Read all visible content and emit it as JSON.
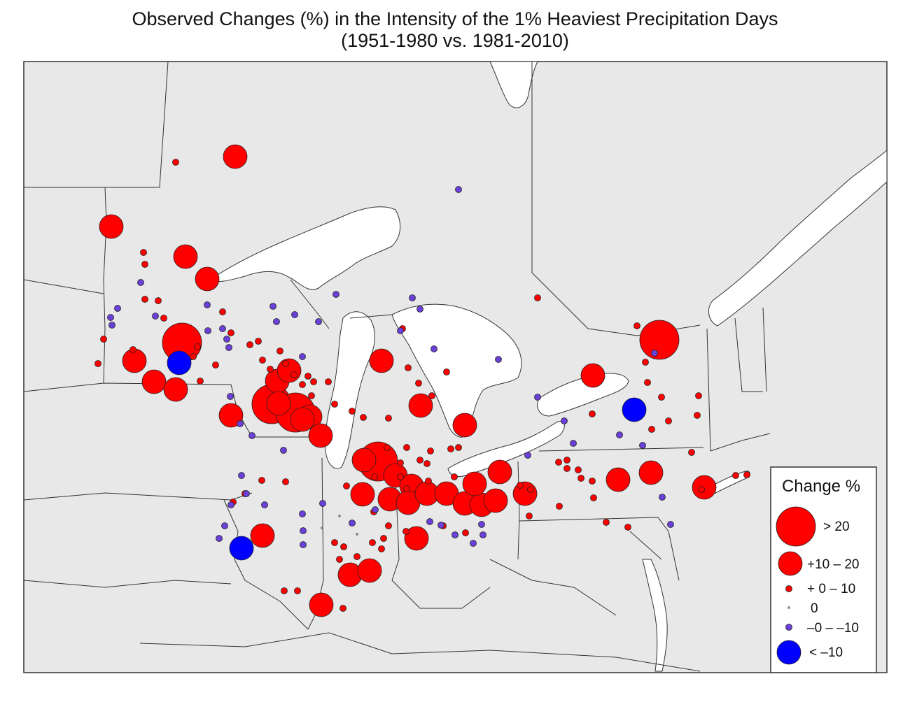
{
  "title": {
    "line1": "Observed Changes (%) in the Intensity of the 1% Heaviest Precipitation Days",
    "line2": "(1951-1980 vs. 1981-2010)"
  },
  "colors": {
    "land": "#e8e8e8",
    "water": "#ffffff",
    "border": "#333333",
    "increase": "#ff0000",
    "decrease_small": "#6a40d8",
    "decrease_large": "#0000ff",
    "zero": "#888888"
  },
  "legend": {
    "title": "Change %",
    "items": [
      {
        "label": "> 20",
        "category": "gt20",
        "color": "#ff0000"
      },
      {
        "label": "+10 – 20",
        "category": "p10_20",
        "color": "#ff0000"
      },
      {
        "label": "+ 0 – 10",
        "category": "p0_10",
        "color": "#ff0000"
      },
      {
        "label": "0",
        "category": "zero",
        "color": "#888888"
      },
      {
        "label": "–0 – –10",
        "category": "m0_10",
        "color": "#6a40d8"
      },
      {
        "label": "< –10",
        "category": "lt10",
        "color": "#0000ff"
      }
    ]
  }
}
